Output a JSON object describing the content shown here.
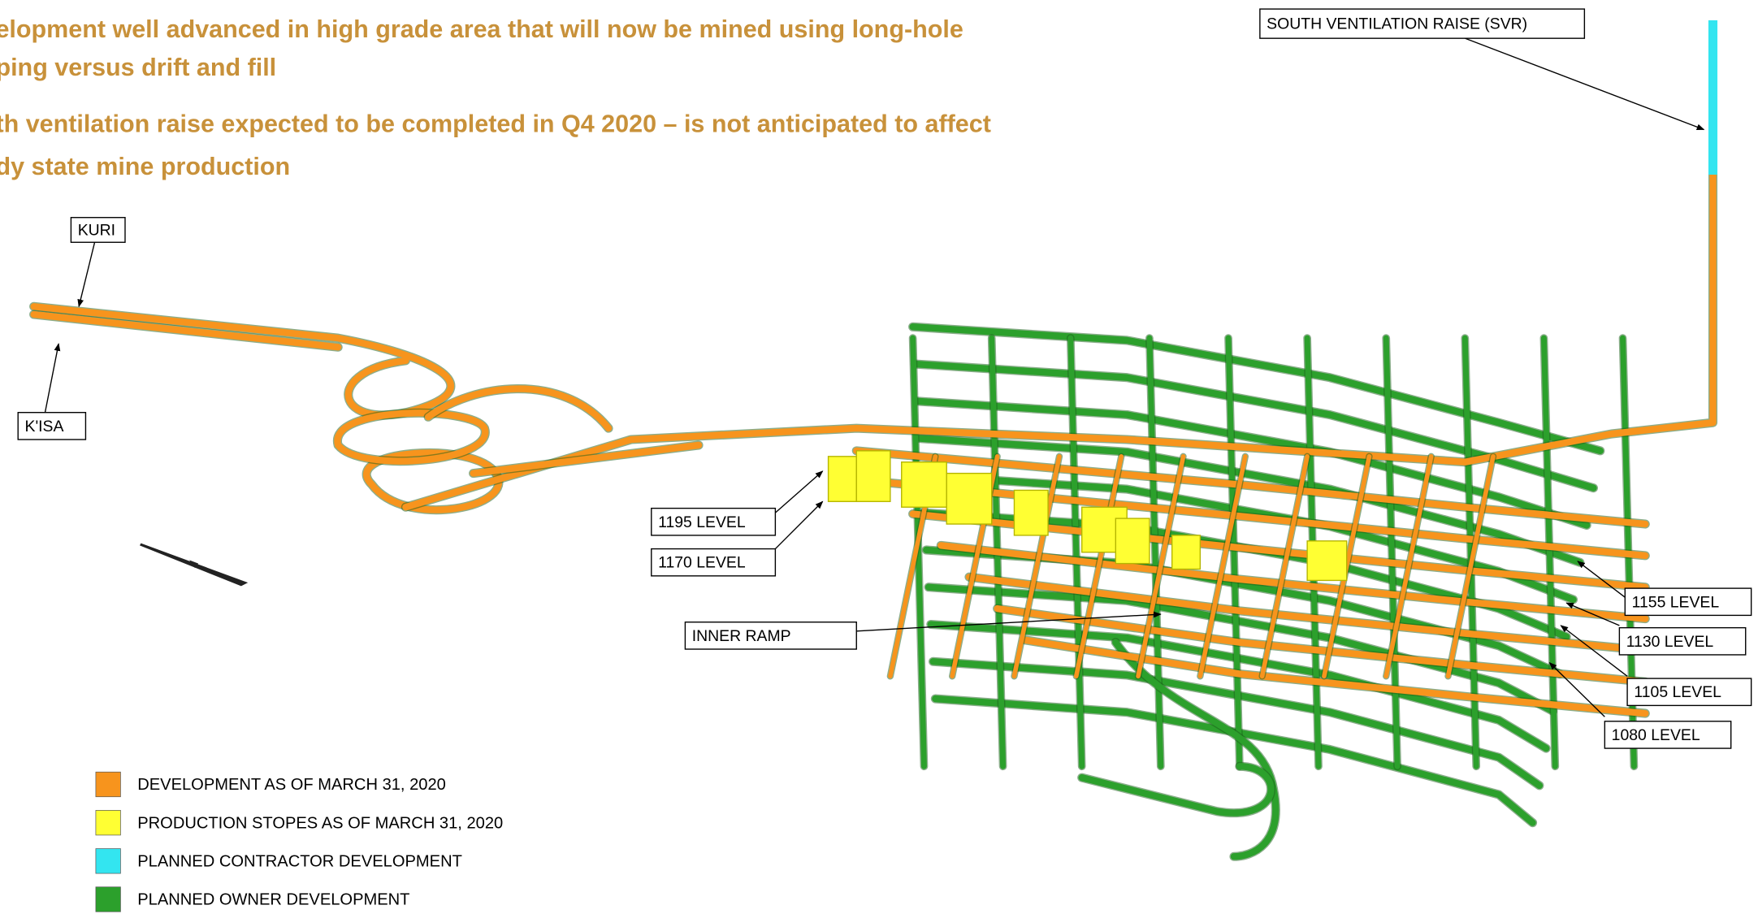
{
  "bullets": [
    {
      "lines": [
        "elopment well advanced in high grade area that will now be mined using long-hole",
        "ping versus drift and fill"
      ]
    },
    {
      "lines": [
        "th ventilation raise expected to be completed in Q4 2020 – is not anticipated to affect",
        "dy state mine production"
      ]
    }
  ],
  "callouts": [
    {
      "label": "SOUTH VENTILATION RAISE (SVR)"
    },
    {
      "label": "KURI"
    },
    {
      "label": "K'ISA"
    },
    {
      "label": "1195 LEVEL"
    },
    {
      "label": "1170 LEVEL"
    },
    {
      "label": "INNER RAMP"
    },
    {
      "label": "1155 LEVEL"
    },
    {
      "label": "1130 LEVEL"
    },
    {
      "label": "1105 LEVEL"
    },
    {
      "label": "1080 LEVEL"
    }
  ],
  "legend": [
    {
      "label": "DEVELOPMENT AS OF MARCH 31, 2020",
      "color": "#f7941d"
    },
    {
      "label": "PRODUCTION STOPES AS OF MARCH 31, 2020",
      "color": "#ffff33"
    },
    {
      "label": "PLANNED CONTRACTOR DEVELOPMENT",
      "color": "#33e5f0"
    },
    {
      "label": "PLANNED OWNER DEVELOPMENT",
      "color": "#2ca02c"
    }
  ]
}
